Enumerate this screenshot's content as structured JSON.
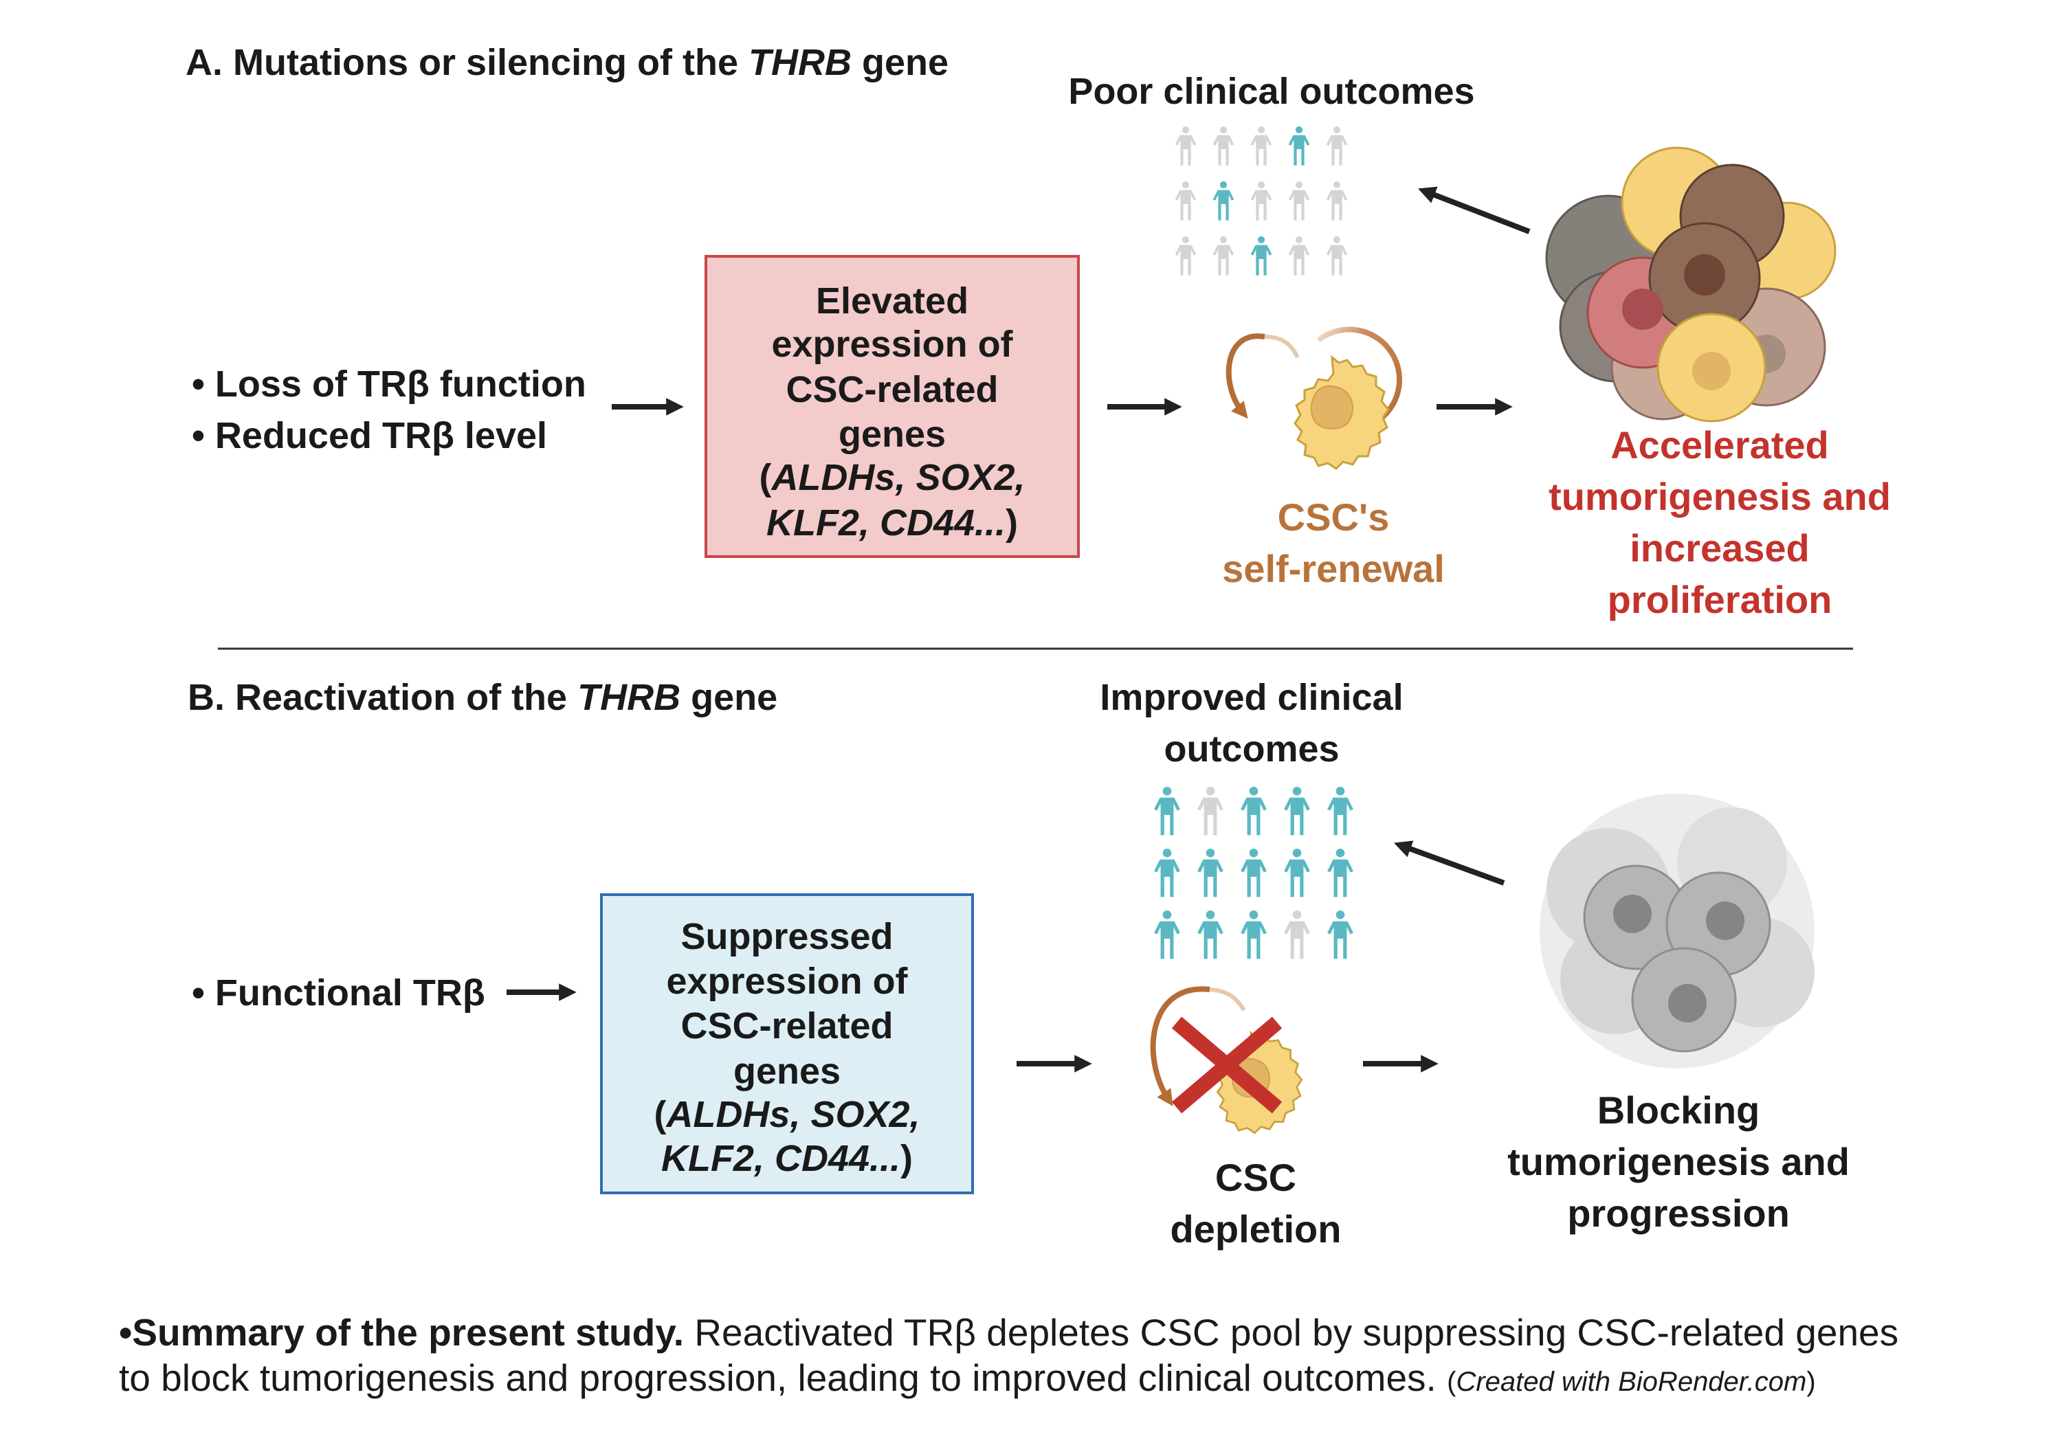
{
  "panel_a": {
    "title_prefix": "A. Mutations or silencing of the ",
    "title_gene": "THRB",
    "title_suffix": " gene",
    "bullets": [
      "• Loss of TRβ function",
      "• Reduced TRβ level"
    ],
    "box_lines": [
      "Elevated",
      "expression of",
      "CSC-related",
      "genes"
    ],
    "box_genes_1": "ALDHs, SOX2,",
    "box_genes_2": "KLF2, CD44...",
    "open_paren": "(",
    "close_paren": ")",
    "outcome_title": "Poor clinical outcomes",
    "people_highlight": [
      [
        false,
        false,
        false,
        true,
        false
      ],
      [
        false,
        true,
        false,
        false,
        false
      ],
      [
        false,
        false,
        true,
        false,
        false
      ]
    ],
    "csc_label": [
      "CSC's",
      "self-renewal"
    ],
    "result_label": [
      "Accelerated",
      "tumorigenesis and",
      "increased",
      "proliferation"
    ]
  },
  "panel_b": {
    "title_prefix": "B. Reactivation of the ",
    "title_gene": "THRB",
    "title_suffix": " gene",
    "bullets": [
      "• Functional TRβ"
    ],
    "box_lines": [
      "Suppressed",
      "expression of",
      "CSC-related",
      "genes"
    ],
    "box_genes_1": "ALDHs, SOX2,",
    "box_genes_2": "KLF2, CD44...",
    "open_paren": "(",
    "close_paren": ")",
    "outcome_title": [
      "Improved clinical",
      "outcomes"
    ],
    "people_highlight": [
      [
        true,
        false,
        true,
        true,
        true
      ],
      [
        true,
        true,
        true,
        true,
        true
      ],
      [
        true,
        true,
        true,
        false,
        true
      ]
    ],
    "csc_label": [
      "CSC",
      "depletion"
    ],
    "result_label": [
      "Blocking",
      "tumorigenesis and",
      "progression"
    ]
  },
  "summary": {
    "bullet_bold": "•Summary of the present study.",
    "text_1": " Reactivated TRβ depletes CSC pool by suppressing CSC-related genes",
    "text_2": "to block tumorigenesis and progression, leading to improved clinical outcomes. ",
    "credit": "(Created with BioRender.com)"
  },
  "colors": {
    "teal": "#5bb8c3",
    "gray_person": "#d4d4d4",
    "red_text": "#c3332c",
    "brown_text": "#b8733a",
    "red_box_fill": "#f3cbcb",
    "red_box_border": "#c9474a",
    "blue_box_fill": "#ddeff4",
    "blue_box_border": "#2f6db5"
  }
}
